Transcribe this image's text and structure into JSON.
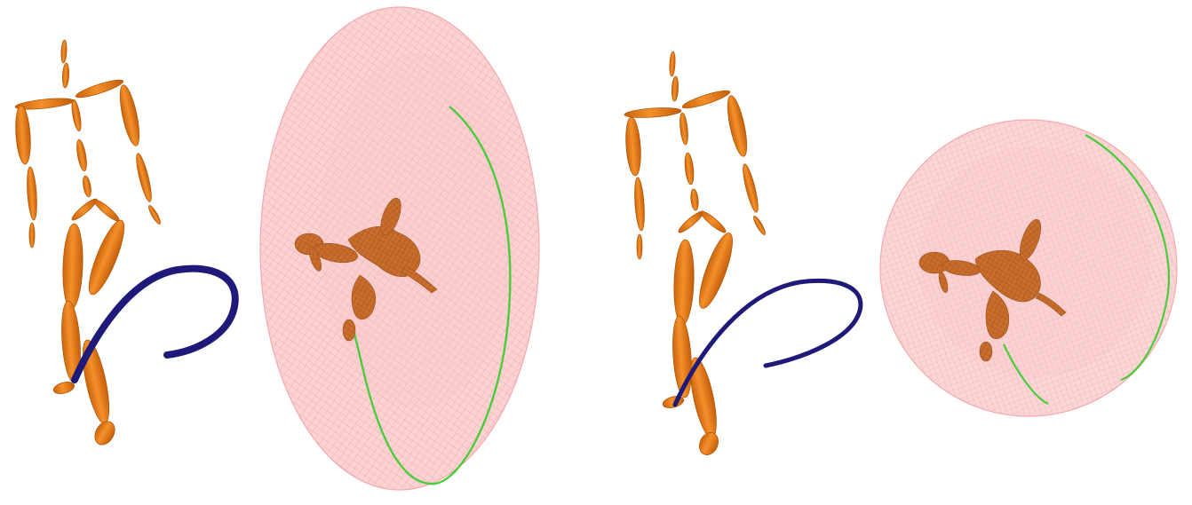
{
  "colors": {
    "background": "#ffffff",
    "skeleton_fill": "#ef7f1a",
    "skeleton_stroke": "#b95a08",
    "trajectory_curve": "#1f1a7a",
    "ellipsoid_fill": "#fbd3d3",
    "ellipsoid_mesh": "#f2a0a8",
    "ellipsoid_outline": "#f4a6ad",
    "path_on_surface": "#4bcc3a",
    "projected_figure": "#c46a2e"
  },
  "panels": [
    {
      "figure": "articulated-skeleton",
      "curve": "trajectory-curve",
      "surface": "elongated-ellipsoid-mesh"
    },
    {
      "figure": "articulated-skeleton",
      "curve": "trajectory-curve",
      "surface": "spherical-mesh"
    }
  ]
}
